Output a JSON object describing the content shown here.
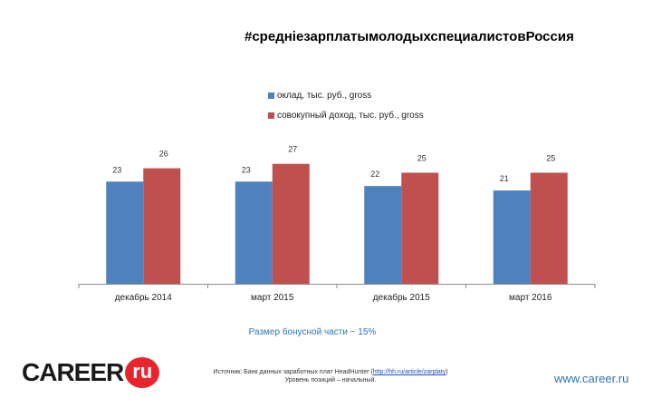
{
  "chart_data": {
    "type": "bar",
    "title": "#среднiезарплатымолодыхспециалистовРоссия",
    "categories": [
      "декабрь 2014",
      "март 2015",
      "декабрь 2015",
      "март 2016"
    ],
    "series": [
      {
        "name": "оклад, тыс. руб., gross",
        "color": "#4f81bd",
        "values": [
          23,
          23,
          22,
          21
        ]
      },
      {
        "name": "совокупный доход, тыс. руб., gross",
        "color": "#c0504d",
        "values": [
          26,
          27,
          25,
          25
        ]
      }
    ],
    "ylim": [
      0,
      30
    ],
    "xlabel": "",
    "ylabel": "",
    "grid": false,
    "legend": "top-center"
  },
  "bonus_note": "Размер бонусной части ~ 15%",
  "logo": {
    "word": "CAREER",
    "badge": "ru"
  },
  "source_line1_prefix": "Источник: Банк данных заработных плат HeadHunter (",
  "source_link": "http://hh.ru/article/zarplaty",
  "source_line1_suffix": ")",
  "source_line2": "Уровень позиций – начальный.",
  "site": "www.career.ru"
}
